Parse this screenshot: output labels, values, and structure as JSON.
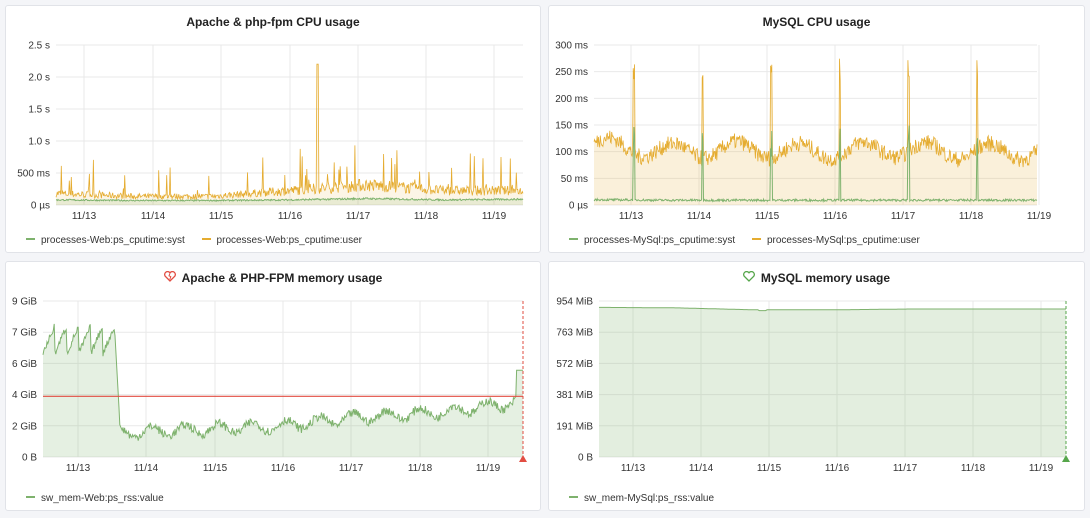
{
  "colors": {
    "syst": "#7eb26d",
    "user": "#e5ac30",
    "threshold": "#e24d42",
    "alert_bad": "#e24d42",
    "alert_ok": "#56a64b",
    "grid": "#e9e9e9"
  },
  "panels": [
    {
      "id": "apache-cpu",
      "title": "Apache & php-fpm CPU usage",
      "alert_icon": "",
      "yticks": [
        "0 µs",
        "500 ms",
        "1.0 s",
        "1.5 s",
        "2.0 s",
        "2.5 s"
      ],
      "xticks": [
        "11/13",
        "11/14",
        "11/15",
        "11/16",
        "11/17",
        "11/18",
        "11/19"
      ],
      "legend": [
        {
          "name": "processes-Web:ps_cputime:syst",
          "color": "#7eb26d"
        },
        {
          "name": "processes-Web:ps_cputime:user",
          "color": "#e5ac30"
        }
      ]
    },
    {
      "id": "mysql-cpu",
      "title": "MySQL CPU usage",
      "alert_icon": "",
      "yticks": [
        "0 µs",
        "50 ms",
        "100 ms",
        "150 ms",
        "200 ms",
        "250 ms",
        "300 ms"
      ],
      "xticks": [
        "11/13",
        "11/14",
        "11/15",
        "11/16",
        "11/17",
        "11/18",
        "11/19"
      ],
      "legend": [
        {
          "name": "processes-MySql:ps_cputime:syst",
          "color": "#7eb26d"
        },
        {
          "name": "processes-MySql:ps_cputime:user",
          "color": "#e5ac30"
        }
      ]
    },
    {
      "id": "apache-mem",
      "title": "Apache & PHP-FPM memory usage",
      "alert_icon": "broken-heart-icon",
      "yticks": [
        "0 B",
        "2 GiB",
        "4 GiB",
        "6 GiB",
        "7 GiB",
        "9 GiB"
      ],
      "xticks": [
        "11/13",
        "11/14",
        "11/15",
        "11/16",
        "11/17",
        "11/18",
        "11/19"
      ],
      "legend": [
        {
          "name": "sw_mem-Web:ps_rss:value",
          "color": "#7eb26d"
        }
      ]
    },
    {
      "id": "mysql-mem",
      "title": "MySQL memory usage",
      "alert_icon": "heart-icon",
      "yticks": [
        "0 B",
        "191 MiB",
        "381 MiB",
        "572 MiB",
        "763 MiB",
        "954 MiB"
      ],
      "xticks": [
        "11/13",
        "11/14",
        "11/15",
        "11/16",
        "11/17",
        "11/18",
        "11/19"
      ],
      "legend": [
        {
          "name": "sw_mem-MySql:ps_rss:value",
          "color": "#7eb26d"
        }
      ]
    }
  ],
  "chart_data": [
    {
      "type": "line",
      "title": "Apache & php-fpm CPU usage",
      "x": [
        "11/13",
        "11/14",
        "11/15",
        "11/16",
        "11/17",
        "11/18",
        "11/19"
      ],
      "ylim_seconds": [
        0,
        2.5
      ],
      "series": [
        {
          "name": "processes-Web:ps_cputime:syst",
          "approx_level_seconds": [
            0.08,
            0.07,
            0.07,
            0.08,
            0.1,
            0.08,
            0.09
          ]
        },
        {
          "name": "processes-Web:ps_cputime:user",
          "approx_level_seconds": [
            0.2,
            0.15,
            0.15,
            0.25,
            0.35,
            0.25,
            0.25
          ],
          "peak_seconds": 2.2
        }
      ],
      "legend": "bottom-left",
      "grid": true
    },
    {
      "type": "area",
      "title": "MySQL CPU usage",
      "x": [
        "11/13",
        "11/14",
        "11/15",
        "11/16",
        "11/17",
        "11/18",
        "11/19"
      ],
      "ylim_ms": [
        0,
        300
      ],
      "series": [
        {
          "name": "processes-MySql:ps_cputime:syst",
          "approx_level_ms": [
            10,
            9,
            9,
            9,
            9,
            9,
            9
          ]
        },
        {
          "name": "processes-MySql:ps_cputime:user",
          "approx_level_ms": [
            115,
            100,
            105,
            100,
            105,
            100,
            100
          ],
          "peak_ms": 275
        }
      ],
      "legend": "bottom-left",
      "grid": true
    },
    {
      "type": "area",
      "title": "Apache & PHP-FPM memory usage",
      "x": [
        "11/13",
        "11/14",
        "11/15",
        "11/16",
        "11/17",
        "11/18",
        "11/19"
      ],
      "ylim_gib": [
        0,
        9
      ],
      "series": [
        {
          "name": "sw_mem-Web:ps_rss:value",
          "approx_level_gib": [
            7.0,
            1.4,
            1.6,
            1.8,
            2.3,
            2.6,
            3.2
          ],
          "last_gib": 5.0
        }
      ],
      "threshold_gib": 3.5,
      "alert_state": "alerting",
      "legend": "bottom-left",
      "grid": true
    },
    {
      "type": "area",
      "title": "MySQL memory usage",
      "x": [
        "11/13",
        "11/14",
        "11/15",
        "11/16",
        "11/17",
        "11/18",
        "11/19"
      ],
      "ylim_mib": [
        0,
        954
      ],
      "series": [
        {
          "name": "sw_mem-MySql:ps_rss:value",
          "approx_level_mib": [
            915,
            912,
            900,
            900,
            905,
            905,
            905
          ]
        }
      ],
      "alert_state": "ok",
      "legend": "bottom-left",
      "grid": true
    }
  ]
}
